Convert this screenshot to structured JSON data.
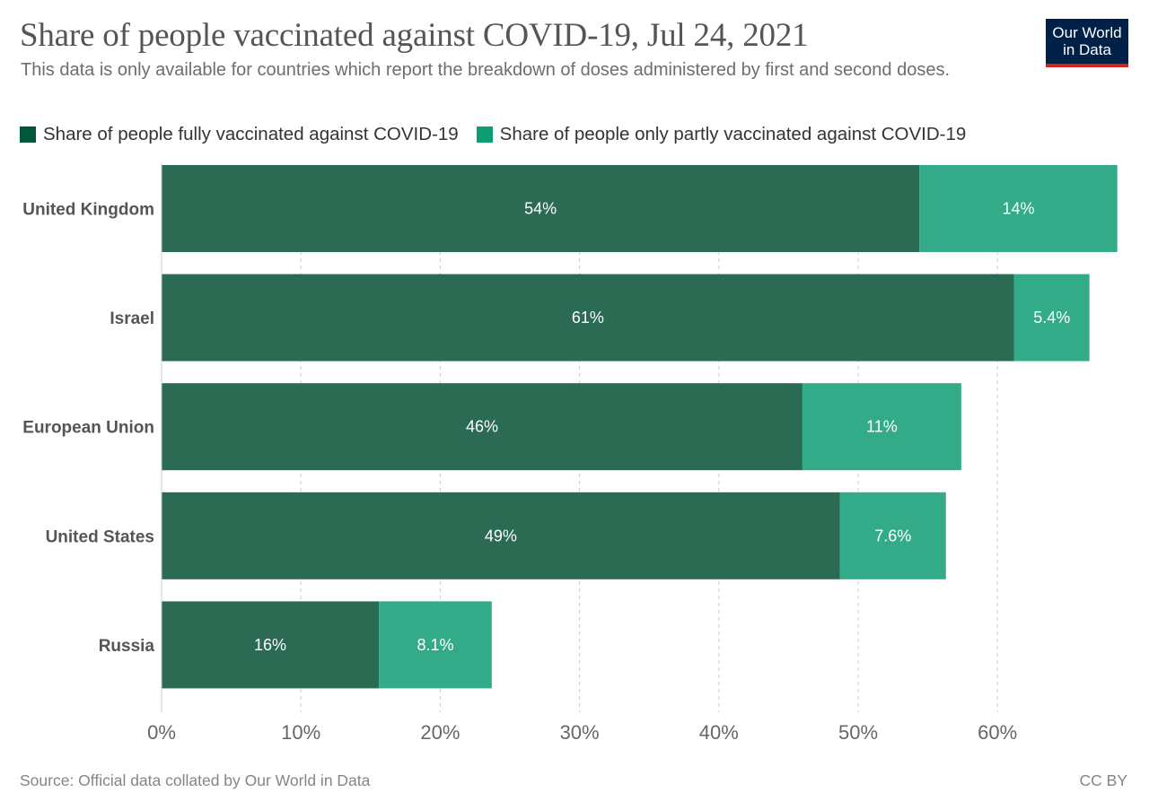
{
  "header": {
    "title": "Share of people vaccinated against COVID-19, Jul 24, 2021",
    "subtitle": "This data is only available for countries which report the breakdown of doses administered by first and second doses.",
    "logo_line1": "Our World",
    "logo_line2": "in Data"
  },
  "legend": {
    "items": [
      {
        "label": "Share of people fully vaccinated against COVID-19",
        "color": "#00573a"
      },
      {
        "label": "Share of people only partly vaccinated against COVID-19",
        "color": "#0f9d74"
      }
    ]
  },
  "chart_data": {
    "type": "bar",
    "orientation": "horizontal",
    "stacked": true,
    "categories": [
      "United Kingdom",
      "Israel",
      "European Union",
      "United States",
      "Russia"
    ],
    "series": [
      {
        "name": "Share of people fully vaccinated against COVID-19",
        "values": [
          54.4,
          61.2,
          46.0,
          48.7,
          15.6
        ],
        "labels": [
          "54%",
          "61%",
          "46%",
          "49%",
          "16%"
        ],
        "color": "#2b6a53"
      },
      {
        "name": "Share of people only partly vaccinated against COVID-19",
        "values": [
          14.2,
          5.4,
          11.4,
          7.6,
          8.1
        ],
        "labels": [
          "14%",
          "5.4%",
          "11%",
          "7.6%",
          "8.1%"
        ],
        "color": "#33ab88"
      }
    ],
    "xlim": [
      0,
      70
    ],
    "xticks": [
      0,
      10,
      20,
      30,
      40,
      50,
      60
    ],
    "xtick_labels": [
      "0%",
      "10%",
      "20%",
      "30%",
      "40%",
      "50%",
      "60%"
    ],
    "grid": "vertical dashed"
  },
  "footer": {
    "source": "Source: Official data collated by Our World in Data",
    "license": "CC BY"
  }
}
